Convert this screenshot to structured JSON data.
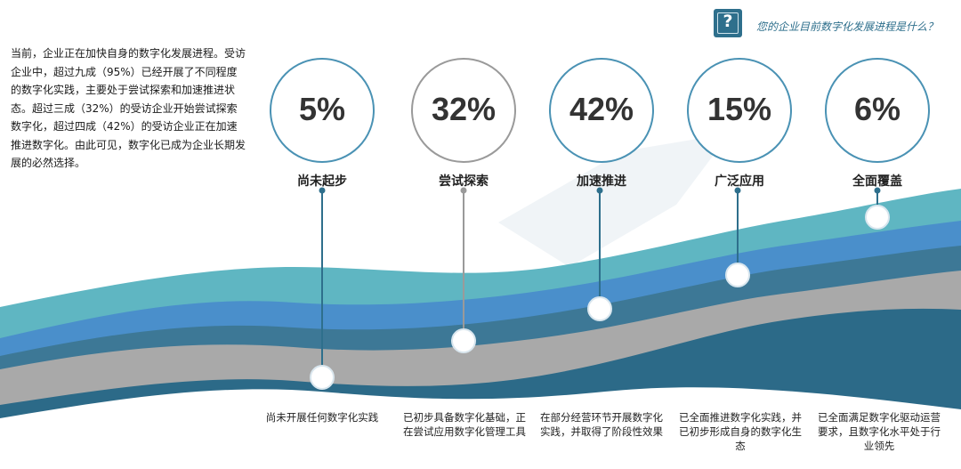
{
  "question": {
    "icon": "question-mark-icon",
    "glyph": "?",
    "text": "您的企业目前数字化发展进程是什么？"
  },
  "intro": {
    "text": "当前，企业正在加快自身的数字化发展进程。受访企业中，超过九成（95%）已经开展了不同程度的数字化实践，主要处于尝试探索和加速推进状态。超过三成（32%）的受访企业开始尝试探索数字化，超过四成（42%）的受访企业正在加速推进数字化。由此可见，数字化已成为企业长期发展的必然选择。"
  },
  "stages": [
    {
      "percent": "5%",
      "label": "尚未起步",
      "description": "尚未开展任何数字化实践"
    },
    {
      "percent": "32%",
      "label": "尝试探索",
      "description": "已初步具备数字化基础，正在尝试应用数字化管理工具"
    },
    {
      "percent": "42%",
      "label": "加速推进",
      "description": "在部分经营环节开展数字化实践，并取得了阶段性效果"
    },
    {
      "percent": "15%",
      "label": "广泛应用",
      "description": "已全面推进数字化实践，并已初步形成自身的数字化生态"
    },
    {
      "percent": "6%",
      "label": "全面覆盖",
      "description": "已全面满足数字化驱动运营要求，且数字化水平处于行业领先"
    }
  ],
  "chart_data": {
    "type": "bar",
    "categories": [
      "尚未起步",
      "尝试探索",
      "加速推进",
      "广泛应用",
      "全面覆盖"
    ],
    "values": [
      5,
      32,
      42,
      15,
      6
    ],
    "unit": "%"
  },
  "colors": {
    "accent": "#2e6f8c",
    "band_light_teal": "#5fb6c2",
    "band_blue": "#4a8fcb",
    "band_slate": "#3d7896",
    "band_gray": "#a9a9a9",
    "band_dark": "#2c6a88",
    "circle_border": "#4a92b4",
    "circle_border_gray": "#9a9a9a"
  }
}
